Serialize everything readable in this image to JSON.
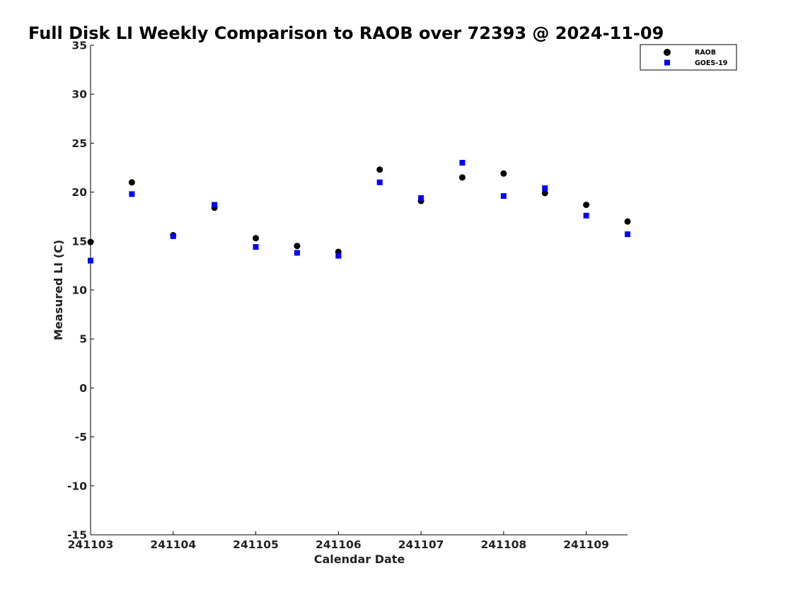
{
  "chart_data": {
    "type": "scatter",
    "title": "Full Disk LI Weekly Comparison to RAOB over 72393 @ 2024-11-09",
    "xlabel": "Calendar Date",
    "ylabel": "Measured LI (C)",
    "xlim": [
      241103,
      241109.5
    ],
    "ylim": [
      -15,
      35
    ],
    "xticks": [
      241103,
      241104,
      241105,
      241106,
      241107,
      241108,
      241109
    ],
    "xtick_labels": [
      "241103",
      "241104",
      "241105",
      "241106",
      "241107",
      "241108",
      "241109"
    ],
    "yticks": [
      -15,
      -10,
      -5,
      0,
      5,
      10,
      15,
      20,
      25,
      30,
      35
    ],
    "ytick_labels": [
      "-15",
      "-10",
      "-5",
      "0",
      "5",
      "10",
      "15",
      "20",
      "25",
      "30",
      "35"
    ],
    "grid": false,
    "legend": "top-right",
    "series": [
      {
        "name": "RAOB",
        "marker": "circle",
        "color": "#000000",
        "x": [
          241103,
          241103.5,
          241104,
          241104.5,
          241105,
          241105.5,
          241106,
          241106.5,
          241107,
          241107.5,
          241108,
          241108.5,
          241109,
          241109.5
        ],
        "y": [
          14.9,
          21.0,
          15.6,
          18.4,
          15.3,
          14.5,
          13.9,
          22.3,
          19.1,
          21.5,
          21.9,
          19.9,
          18.7,
          17.0
        ]
      },
      {
        "name": "GOES-19",
        "marker": "square",
        "color": "#0000ff",
        "x": [
          241103,
          241103.5,
          241104,
          241104.5,
          241105,
          241105.5,
          241106,
          241106.5,
          241107,
          241107.5,
          241108,
          241108.5,
          241109,
          241109.5
        ],
        "y": [
          13.0,
          19.8,
          15.5,
          18.7,
          14.4,
          13.8,
          13.5,
          21.0,
          19.4,
          23.0,
          19.6,
          20.4,
          17.6,
          15.7
        ]
      }
    ]
  }
}
